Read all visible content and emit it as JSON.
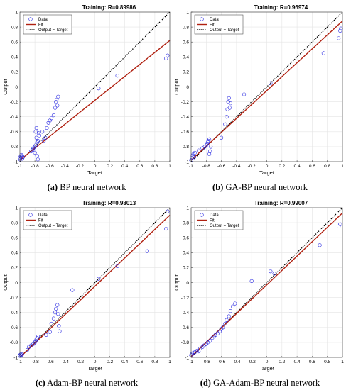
{
  "chart_data": [
    {
      "type": "scatter",
      "panel": "a",
      "title": "Training: R=0.89986",
      "xlabel": "Target",
      "ylabel": "Output",
      "xlim": [
        -1,
        1
      ],
      "ylim": [
        -1,
        1
      ],
      "xticks": [
        "-1",
        "-0.8",
        "-0.6",
        "-0.4",
        "-0.2",
        "0",
        "0.2",
        "0.4",
        "0.6",
        "0.8",
        "1"
      ],
      "yticks": [
        "-1",
        "-0.8",
        "-0.6",
        "-0.4",
        "-0.2",
        "0",
        "0.2",
        "0.4",
        "0.6",
        "0.8",
        "1"
      ],
      "grid": true,
      "legend_position": "top-left",
      "legend": [
        "Data",
        "Fit",
        "Output = Target"
      ],
      "fit": {
        "slope": 0.8,
        "intercept": -0.18
      },
      "points": [
        [
          -1,
          -0.97
        ],
        [
          -1,
          -0.95
        ],
        [
          -0.99,
          -0.93
        ],
        [
          -0.98,
          -0.91
        ],
        [
          -0.97,
          -0.96
        ],
        [
          -0.97,
          -0.92
        ],
        [
          -0.96,
          -0.94
        ],
        [
          -0.85,
          -0.86
        ],
        [
          -0.83,
          -0.84
        ],
        [
          -0.82,
          -0.82
        ],
        [
          -0.8,
          -0.8
        ],
        [
          -0.8,
          -0.88
        ],
        [
          -0.79,
          -0.78
        ],
        [
          -0.79,
          -0.6
        ],
        [
          -0.78,
          -0.55
        ],
        [
          -0.78,
          -0.68
        ],
        [
          -0.77,
          -0.74
        ],
        [
          -0.77,
          -0.92
        ],
        [
          -0.76,
          -0.97
        ],
        [
          -0.76,
          -0.72
        ],
        [
          -0.75,
          -0.62
        ],
        [
          -0.74,
          -0.65
        ],
        [
          -0.7,
          -0.6
        ],
        [
          -0.68,
          -0.72
        ],
        [
          -0.66,
          -0.68
        ],
        [
          -0.64,
          -0.55
        ],
        [
          -0.62,
          -0.48
        ],
        [
          -0.6,
          -0.45
        ],
        [
          -0.58,
          -0.42
        ],
        [
          -0.55,
          -0.38
        ],
        [
          -0.53,
          -0.28
        ],
        [
          -0.52,
          -0.2
        ],
        [
          -0.51,
          -0.17
        ],
        [
          -0.5,
          -0.25
        ],
        [
          -0.49,
          -0.13
        ],
        [
          0.05,
          -0.02
        ],
        [
          0.3,
          0.15
        ],
        [
          0.95,
          0.38
        ],
        [
          0.97,
          0.42
        ]
      ],
      "colors": {
        "data": "#2020e0",
        "fit": "#b02010",
        "identity": "#000000"
      }
    },
    {
      "type": "scatter",
      "panel": "b",
      "title": "Training: R=0.96974",
      "xlabel": "Target",
      "ylabel": "Output",
      "xlim": [
        -1,
        1
      ],
      "ylim": [
        -1,
        1
      ],
      "xticks": [
        "-1",
        "-0.8",
        "-0.6",
        "-0.4",
        "-0.2",
        "0",
        "0.2",
        "0.4",
        "0.6",
        "0.8",
        "1"
      ],
      "yticks": [
        "-1",
        "-0.8",
        "-0.6",
        "-0.4",
        "-0.2",
        "0",
        "0.2",
        "0.4",
        "0.6",
        "0.8",
        "1"
      ],
      "grid": true,
      "legend_position": "top-left",
      "legend": [
        "Data",
        "Fit",
        "Output = Target"
      ],
      "fit": {
        "slope": 0.93,
        "intercept": -0.05
      },
      "points": [
        [
          -1,
          -0.98
        ],
        [
          -0.99,
          -0.95
        ],
        [
          -0.98,
          -0.92
        ],
        [
          -0.97,
          -0.9
        ],
        [
          -0.96,
          -0.94
        ],
        [
          -0.95,
          -0.88
        ],
        [
          -0.9,
          -0.85
        ],
        [
          -0.85,
          -0.82
        ],
        [
          -0.82,
          -0.8
        ],
        [
          -0.8,
          -0.78
        ],
        [
          -0.79,
          -0.76
        ],
        [
          -0.78,
          -0.74
        ],
        [
          -0.77,
          -0.72
        ],
        [
          -0.76,
          -0.7
        ],
        [
          -0.76,
          -0.9
        ],
        [
          -0.75,
          -0.86
        ],
        [
          -0.74,
          -0.8
        ],
        [
          -0.6,
          -0.68
        ],
        [
          -0.55,
          -0.5
        ],
        [
          -0.53,
          -0.4
        ],
        [
          -0.52,
          -0.3
        ],
        [
          -0.51,
          -0.2
        ],
        [
          -0.5,
          -0.15
        ],
        [
          -0.49,
          -0.28
        ],
        [
          -0.48,
          -0.22
        ],
        [
          -0.3,
          -0.1
        ],
        [
          0.05,
          0.05
        ],
        [
          0.75,
          0.45
        ],
        [
          0.95,
          0.65
        ],
        [
          0.97,
          0.75
        ],
        [
          0.98,
          0.78
        ]
      ],
      "colors": {
        "data": "#2020e0",
        "fit": "#b02010",
        "identity": "#000000"
      }
    },
    {
      "type": "scatter",
      "panel": "c",
      "title": "Training: R=0.98013",
      "xlabel": "Target",
      "ylabel": "Output",
      "xlim": [
        -1,
        1
      ],
      "ylim": [
        -1,
        1
      ],
      "xticks": [
        "-1",
        "-0.8",
        "-0.6",
        "-0.4",
        "-0.2",
        "0",
        "0.2",
        "0.4",
        "0.6",
        "0.8",
        "1"
      ],
      "yticks": [
        "-1",
        "-0.8",
        "-0.6",
        "-0.4",
        "-0.2",
        "0",
        "0.2",
        "0.4",
        "0.6",
        "0.8",
        "1"
      ],
      "grid": true,
      "legend_position": "top-left",
      "legend": [
        "Data",
        "Fit",
        "Output = Target"
      ],
      "fit": {
        "slope": 0.95,
        "intercept": -0.05
      },
      "points": [
        [
          -1,
          -0.98
        ],
        [
          -1,
          -0.97
        ],
        [
          -0.99,
          -0.96
        ],
        [
          -0.98,
          -0.97
        ],
        [
          -0.97,
          -0.96
        ],
        [
          -0.9,
          -0.9
        ],
        [
          -0.88,
          -0.86
        ],
        [
          -0.85,
          -0.84
        ],
        [
          -0.82,
          -0.82
        ],
        [
          -0.8,
          -0.8
        ],
        [
          -0.79,
          -0.78
        ],
        [
          -0.78,
          -0.76
        ],
        [
          -0.77,
          -0.74
        ],
        [
          -0.76,
          -0.72
        ],
        [
          -0.65,
          -0.7
        ],
        [
          -0.6,
          -0.66
        ],
        [
          -0.58,
          -0.55
        ],
        [
          -0.55,
          -0.48
        ],
        [
          -0.53,
          -0.4
        ],
        [
          -0.52,
          -0.35
        ],
        [
          -0.5,
          -0.3
        ],
        [
          -0.49,
          -0.42
        ],
        [
          -0.48,
          -0.58
        ],
        [
          -0.47,
          -0.65
        ],
        [
          -0.3,
          -0.1
        ],
        [
          0.05,
          0.05
        ],
        [
          0.3,
          0.22
        ],
        [
          0.7,
          0.42
        ],
        [
          0.95,
          0.72
        ],
        [
          0.97,
          0.95
        ]
      ],
      "colors": {
        "data": "#2020e0",
        "fit": "#b02010",
        "identity": "#000000"
      }
    },
    {
      "type": "scatter",
      "panel": "d",
      "title": "Training: R=0.99007",
      "xlabel": "Target",
      "ylabel": "Output",
      "xlim": [
        -1,
        1
      ],
      "ylim": [
        -1,
        1
      ],
      "xticks": [
        "-1",
        "-0.8",
        "-0.6",
        "-0.4",
        "-0.2",
        "0",
        "0.2",
        "0.4",
        "0.6",
        "0.8",
        "1"
      ],
      "yticks": [
        "-1",
        "-0.8",
        "-0.6",
        "-0.4",
        "-0.2",
        "0",
        "0.2",
        "0.4",
        "0.6",
        "0.8",
        "1"
      ],
      "grid": true,
      "legend_position": "top-left",
      "legend": [
        "Data",
        "Fit",
        "Output = Target"
      ],
      "fit": {
        "slope": 0.96,
        "intercept": -0.03
      },
      "points": [
        [
          -1,
          -0.97
        ],
        [
          -0.99,
          -0.95
        ],
        [
          -0.97,
          -0.94
        ],
        [
          -0.95,
          -0.93
        ],
        [
          -0.92,
          -0.91
        ],
        [
          -0.9,
          -0.92
        ],
        [
          -0.88,
          -0.88
        ],
        [
          -0.85,
          -0.86
        ],
        [
          -0.83,
          -0.84
        ],
        [
          -0.8,
          -0.82
        ],
        [
          -0.78,
          -0.8
        ],
        [
          -0.75,
          -0.78
        ],
        [
          -0.72,
          -0.74
        ],
        [
          -0.7,
          -0.72
        ],
        [
          -0.68,
          -0.7
        ],
        [
          -0.65,
          -0.68
        ],
        [
          -0.62,
          -0.65
        ],
        [
          -0.6,
          -0.62
        ],
        [
          -0.58,
          -0.6
        ],
        [
          -0.55,
          -0.55
        ],
        [
          -0.53,
          -0.5
        ],
        [
          -0.5,
          -0.45
        ],
        [
          -0.48,
          -0.38
        ],
        [
          -0.45,
          -0.32
        ],
        [
          -0.42,
          -0.28
        ],
        [
          -0.2,
          0.02
        ],
        [
          0.05,
          0.15
        ],
        [
          0.1,
          0.12
        ],
        [
          0.7,
          0.5
        ],
        [
          0.95,
          0.75
        ],
        [
          0.97,
          0.78
        ]
      ],
      "colors": {
        "data": "#2020e0",
        "fit": "#b02010",
        "identity": "#000000"
      }
    }
  ],
  "captions": [
    {
      "letter": "(a)",
      "text": " BP neural network"
    },
    {
      "letter": "(b)",
      "text": " GA-BP neural network"
    },
    {
      "letter": "(c)",
      "text": " Adam-BP neural network"
    },
    {
      "letter": "(d)",
      "text": " GA-Adam-BP neural network"
    }
  ]
}
